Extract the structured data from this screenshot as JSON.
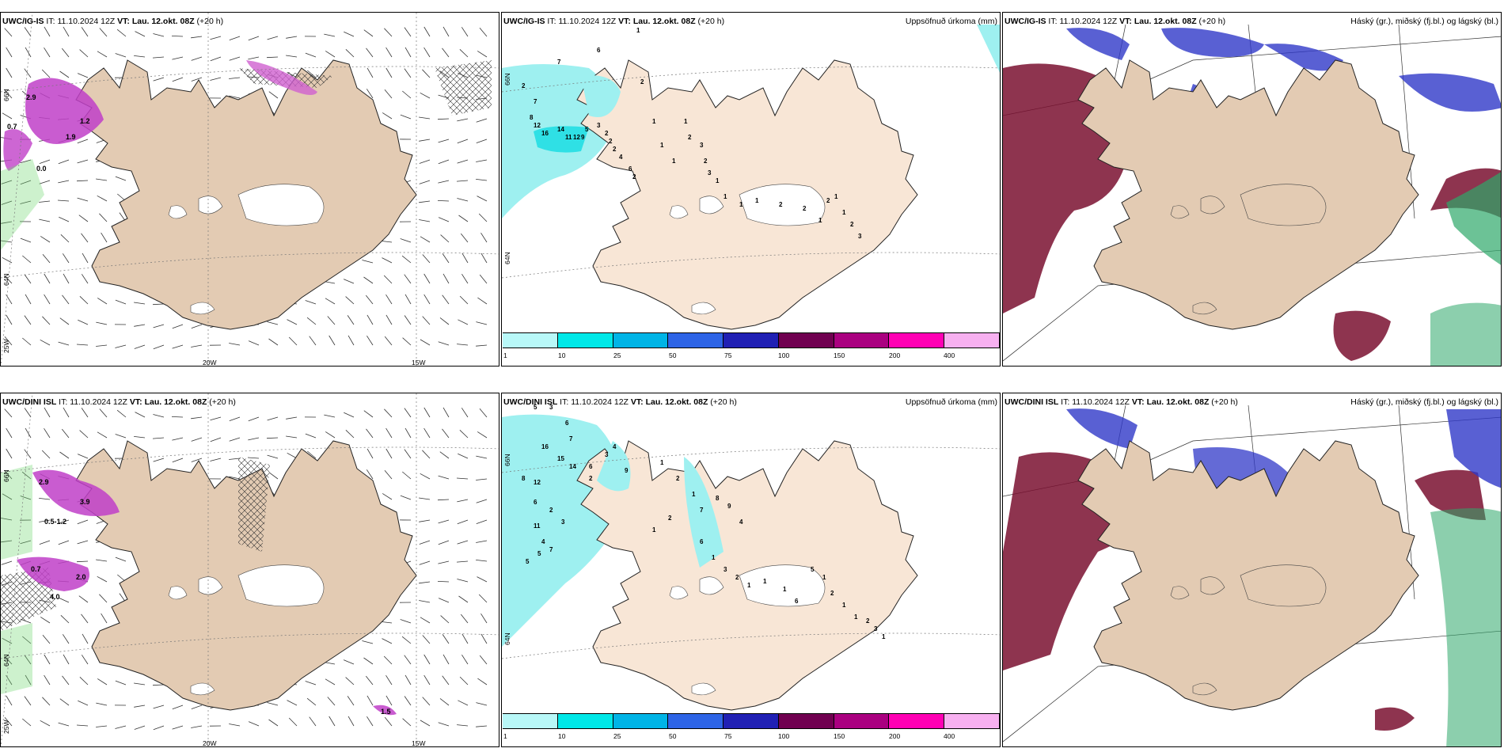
{
  "panels": {
    "p1": {
      "model": "UWC/IG-IS",
      "it_label": "IT:",
      "it_value": "11.10.2024 12Z",
      "vt_label": "VT:",
      "vt_value": "Lau. 12.okt. 08Z",
      "lead": "(+20 h)"
    },
    "p2": {
      "model": "UWC/IG-IS",
      "it_label": "IT:",
      "it_value": "11.10.2024 12Z",
      "vt_label": "VT:",
      "vt_value": "Lau. 12.okt. 08Z",
      "lead": "(+20 h)",
      "right_title": "Uppsöfnuð úrkoma (mm)"
    },
    "p3": {
      "model": "UWC/IG-IS",
      "it_label": "IT:",
      "it_value": "11.10.2024 12Z",
      "vt_label": "VT:",
      "vt_value": "Lau. 12.okt. 08Z",
      "lead": "(+20 h)",
      "right_title": "Háský (gr.), miðský (fj.bl.) og lágský (bl.)"
    },
    "p4": {
      "model": "UWC/DINI ISL",
      "it_label": "IT:",
      "it_value": "11.10.2024 12Z",
      "vt_label": "VT:",
      "vt_value": "Lau. 12.okt. 08Z",
      "lead": "(+20 h)"
    },
    "p5": {
      "model": "UWC/DINI ISL",
      "it_label": "IT:",
      "it_value": "11.10.2024 12Z",
      "vt_label": "VT:",
      "vt_value": "Lau. 12.okt. 08Z",
      "lead": "(+20 h)",
      "right_title": "Uppsöfnuð úrkoma (mm)"
    },
    "p6": {
      "model": "UWC/DINI ISL",
      "it_label": "IT:",
      "it_value": "11.10.2024 12Z",
      "vt_label": "VT:",
      "vt_value": "Lau. 12.okt. 08Z",
      "lead": "(+20 h)",
      "right_title": "Háský (gr.), miðský (fj.bl.) og lágský (bl.)"
    }
  },
  "axes": {
    "lat_66": "66N",
    "lat_64": "64N",
    "lon_25": "25W",
    "lon_20": "20W",
    "lon_15": "15W"
  },
  "colorbar": {
    "ticks": [
      "1",
      "10",
      "25",
      "50",
      "75",
      "100",
      "150",
      "200",
      "400"
    ],
    "colors": [
      "#b8f8f8",
      "#00e8e8",
      "#00b4e6",
      "#2d64e6",
      "#2020b4",
      "#700050",
      "#aa0080",
      "#ff00b4",
      "#f7b0f0"
    ]
  },
  "colors": {
    "land": "#e3cbb3",
    "land_precip": "#f8e6d6",
    "precip_light": "#9ef0f0",
    "high_cloud": "#7a1030",
    "mid_cloud": "#3038c8",
    "low_cloud": "#2ea86a"
  },
  "markers": {
    "p1": [
      "2.9",
      "0.7",
      "1.9",
      "0.0",
      "1.2"
    ],
    "p2": [
      "1",
      "2",
      "6",
      "7",
      "2",
      "7",
      "8",
      "12",
      "16",
      "14",
      "11",
      "12",
      "9",
      "5",
      "3",
      "2",
      "2",
      "2",
      "4",
      "6",
      "2",
      "1",
      "1",
      "1",
      "1",
      "2",
      "3",
      "2",
      "3",
      "1",
      "1",
      "1",
      "1",
      "2",
      "2",
      "1",
      "2",
      "1",
      "1",
      "2",
      "3"
    ],
    "p4": [
      "2.9",
      "0.5-1.2",
      "3.9",
      "0.7",
      "4.0",
      "2.0",
      "1.5"
    ],
    "p5": [
      "5",
      "3",
      "6",
      "7",
      "16",
      "4",
      "15",
      "14",
      "3",
      "6",
      "12",
      "8",
      "6",
      "2",
      "3",
      "11",
      "4",
      "7",
      "5",
      "5",
      "9",
      "2",
      "1",
      "2",
      "1",
      "7",
      "8",
      "9",
      "4",
      "2",
      "1",
      "6",
      "1",
      "3",
      "2",
      "1",
      "1",
      "1",
      "6",
      "5",
      "1",
      "2",
      "1",
      "1",
      "2",
      "3",
      "1"
    ]
  }
}
